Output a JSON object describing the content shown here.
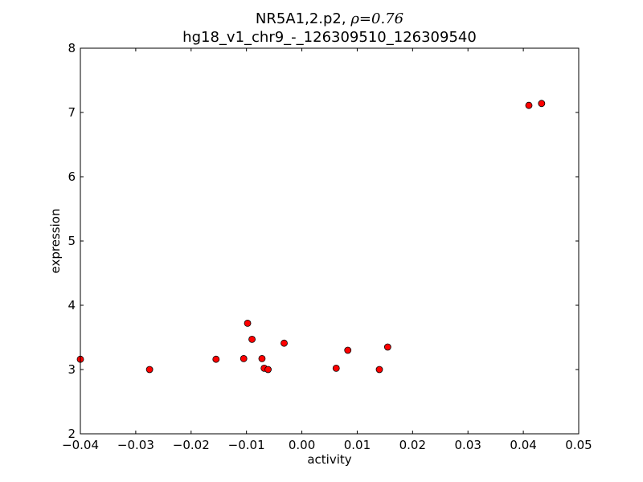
{
  "chart_data": {
    "type": "scatter",
    "title_line1": "NR5A1,2.p2, ",
    "title_rho": "ρ=0.76",
    "title_line2": "hg18_v1_chr9_-_126309510_126309540",
    "xlabel": "activity",
    "ylabel": "expression",
    "xlim": [
      -0.04,
      0.05
    ],
    "ylim": [
      2,
      8
    ],
    "xticks": [
      -0.04,
      -0.03,
      -0.02,
      -0.01,
      0.0,
      0.01,
      0.02,
      0.03,
      0.04,
      0.05
    ],
    "xtick_labels": [
      "−0.04",
      "−0.03",
      "−0.02",
      "−0.01",
      "0.00",
      "0.01",
      "0.02",
      "0.03",
      "0.04",
      "0.05"
    ],
    "yticks": [
      2,
      3,
      4,
      5,
      6,
      7,
      8
    ],
    "ytick_labels": [
      "2",
      "3",
      "4",
      "5",
      "6",
      "7",
      "8"
    ],
    "grid": false,
    "marker_color": "#ff0000",
    "marker_edge_color": "#000000",
    "points": [
      {
        "x": -0.04,
        "y": 3.16
      },
      {
        "x": -0.0275,
        "y": 3.0
      },
      {
        "x": -0.0155,
        "y": 3.16
      },
      {
        "x": -0.0105,
        "y": 3.17
      },
      {
        "x": -0.0098,
        "y": 3.72
      },
      {
        "x": -0.009,
        "y": 3.47
      },
      {
        "x": -0.0072,
        "y": 3.17
      },
      {
        "x": -0.0068,
        "y": 3.02
      },
      {
        "x": -0.0061,
        "y": 3.0
      },
      {
        "x": -0.0032,
        "y": 3.41
      },
      {
        "x": 0.0062,
        "y": 3.02
      },
      {
        "x": 0.0083,
        "y": 3.3
      },
      {
        "x": 0.014,
        "y": 3.0
      },
      {
        "x": 0.0155,
        "y": 3.35
      },
      {
        "x": 0.041,
        "y": 7.11
      },
      {
        "x": 0.0433,
        "y": 7.14
      }
    ]
  }
}
